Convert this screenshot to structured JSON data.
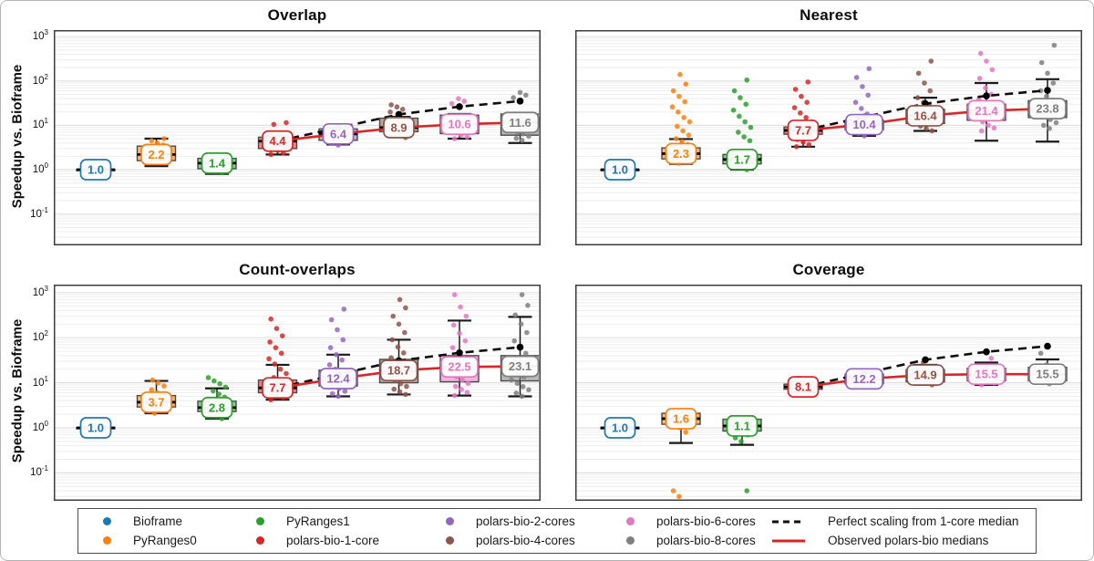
{
  "figure": {
    "ylabel": "Speedup vs. Bioframe",
    "tick_exponents": [
      3,
      2,
      1,
      0,
      -1
    ],
    "y_scale": "log"
  },
  "palette": {
    "blue": "#1f77b4",
    "orange": "#ff7f0e",
    "green": "#2ca02c",
    "red": "#d62728",
    "purple": "#9467bd",
    "brown": "#8c564b",
    "pink": "#e377c2",
    "gray": "#7f7f7f",
    "perfect_line": "#0d0d0d",
    "observed_line": "#d62728"
  },
  "legend": {
    "items": [
      {
        "label": "Bioframe",
        "marker": "dot",
        "color": "#1f77b4"
      },
      {
        "label": "PyRanges0",
        "marker": "dot",
        "color": "#ff7f0e"
      },
      {
        "label": "PyRanges1",
        "marker": "dot",
        "color": "#2ca02c"
      },
      {
        "label": "polars-bio-1-core",
        "marker": "dot",
        "color": "#d62728"
      },
      {
        "label": "polars-bio-2-cores",
        "marker": "dot",
        "color": "#9467bd"
      },
      {
        "label": "polars-bio-4-cores",
        "marker": "dot",
        "color": "#8c564b"
      },
      {
        "label": "polars-bio-6-cores",
        "marker": "dot",
        "color": "#e377c2"
      },
      {
        "label": "polars-bio-8-cores",
        "marker": "dot",
        "color": "#7f7f7f"
      },
      {
        "label": "Perfect scaling from 1-core median",
        "marker": "dashed",
        "color": "#0d0d0d"
      },
      {
        "label": "Observed polars-bio medians",
        "marker": "solid",
        "color": "#d62728"
      }
    ]
  },
  "chart_data": [
    {
      "type": "box",
      "title": "Overlap",
      "series": [
        {
          "name": "Bioframe",
          "color": "#1f77b4",
          "label": "1.0",
          "median": 1.0,
          "q1": 0.98,
          "q3": 1.02,
          "lo": 0.94,
          "hi": 1.06,
          "points": []
        },
        {
          "name": "PyRanges0",
          "color": "#ff7f0e",
          "label": "2.2",
          "median": 2.2,
          "q1": 1.6,
          "q3": 3.4,
          "lo": 1.2,
          "hi": 5.0,
          "points": [
            1.5,
            1.7,
            1.9,
            2.1,
            2.3,
            2.6,
            2.9,
            3.2,
            3.6,
            4.0,
            4.5,
            5.0
          ]
        },
        {
          "name": "PyRanges1",
          "color": "#2ca02c",
          "label": "1.4",
          "median": 1.4,
          "q1": 1.05,
          "q3": 1.8,
          "lo": 0.8,
          "hi": 2.0,
          "points": [
            0.85,
            0.9,
            0.95,
            1.0,
            1.05,
            1.1,
            1.2,
            1.3,
            1.45,
            1.6,
            1.8
          ]
        },
        {
          "name": "polars-bio-1-core",
          "color": "#d62728",
          "label": "4.4",
          "median": 4.4,
          "q1": 3.0,
          "q3": 5.4,
          "lo": 2.2,
          "hi": 5.8,
          "points": [
            2.2,
            2.4,
            2.7,
            3.0,
            3.3,
            3.7,
            4.1,
            4.6,
            5.1,
            10.5,
            11.5
          ]
        },
        {
          "name": "polars-bio-2-cores",
          "color": "#9467bd",
          "label": "6.4",
          "median": 6.4,
          "q1": 4.6,
          "q3": 8.3,
          "lo": 3.7,
          "hi": 8.8,
          "points": [
            3.6,
            3.9,
            4.2,
            4.6,
            5.0,
            5.5,
            6.0,
            6.6,
            7.3,
            8.0
          ]
        },
        {
          "name": "polars-bio-4-cores",
          "color": "#8c564b",
          "label": "8.9",
          "median": 8.9,
          "q1": 7.2,
          "q3": 14.5,
          "lo": 5.8,
          "hi": 15.5,
          "points": [
            5.3,
            5.8,
            6.3,
            7.0,
            7.7,
            8.5,
            9.4,
            10.5,
            12,
            20,
            23,
            26,
            29
          ]
        },
        {
          "name": "polars-bio-6-cores",
          "color": "#e377c2",
          "label": "10.6",
          "median": 10.6,
          "q1": 6.5,
          "q3": 17,
          "lo": 5.0,
          "hi": 18,
          "points": [
            5.0,
            5.5,
            6.1,
            6.8,
            7.5,
            8.4,
            9.4,
            10.5,
            12,
            14,
            31,
            35,
            40
          ]
        },
        {
          "name": "polars-bio-8-cores",
          "color": "#7f7f7f",
          "label": "11.6",
          "median": 11.6,
          "q1": 6.0,
          "q3": 18,
          "lo": 4.0,
          "hi": 19,
          "points": [
            4.6,
            5.1,
            5.7,
            6.4,
            7.2,
            8.1,
            9.1,
            10.3,
            12,
            14,
            16,
            42,
            48,
            55
          ]
        }
      ],
      "perfect_scaling": {
        "x_indices": [
          3,
          4,
          5,
          6,
          7
        ],
        "values": [
          4.4,
          8.8,
          17.6,
          26.4,
          35.2
        ]
      },
      "observed_medians": {
        "x_indices": [
          3,
          4,
          5,
          6,
          7
        ],
        "values": [
          4.4,
          6.4,
          8.9,
          10.6,
          11.6
        ]
      }
    },
    {
      "type": "box",
      "title": "Nearest",
      "series": [
        {
          "name": "Bioframe",
          "color": "#1f77b4",
          "label": "1.0",
          "median": 1.0,
          "q1": 0.98,
          "q3": 1.02,
          "lo": 0.94,
          "hi": 1.06,
          "points": []
        },
        {
          "name": "PyRanges0",
          "color": "#ff7f0e",
          "label": "2.3",
          "median": 2.3,
          "q1": 1.75,
          "q3": 3.1,
          "lo": 1.35,
          "hi": 4.9,
          "points": [
            1.4,
            1.6,
            1.8,
            2.0,
            2.2,
            2.5,
            2.8,
            3.2,
            3.7,
            4.3,
            5.0,
            6.0,
            7.5,
            9.5,
            12,
            15,
            20,
            26,
            34,
            45,
            60,
            85,
            140
          ]
        },
        {
          "name": "PyRanges1",
          "color": "#2ca02c",
          "label": "1.7",
          "median": 1.7,
          "q1": 1.35,
          "q3": 2.2,
          "lo": 1.0,
          "hi": 2.6,
          "points": [
            1.0,
            1.1,
            1.2,
            1.3,
            1.45,
            1.6,
            1.75,
            1.95,
            2.2,
            4.5,
            5.5,
            7,
            9,
            12,
            16,
            22,
            30,
            42,
            60,
            105
          ]
        },
        {
          "name": "polars-bio-1-core",
          "color": "#d62728",
          "label": "7.7",
          "median": 7.7,
          "q1": 6.3,
          "q3": 9.2,
          "lo": 3.3,
          "hi": 10,
          "points": [
            3.3,
            3.7,
            4.2,
            4.8,
            5.5,
            6.2,
            7.0,
            7.9,
            8.9,
            10,
            12,
            15,
            19,
            25,
            33,
            45,
            65,
            95
          ]
        },
        {
          "name": "polars-bio-2-cores",
          "color": "#9467bd",
          "label": "10.4",
          "median": 10.4,
          "q1": 8.0,
          "q3": 13,
          "lo": 5.8,
          "hi": 15.5,
          "points": [
            5.8,
            6.5,
            7.3,
            8.2,
            9.2,
            10.3,
            11.6,
            13,
            15,
            18,
            24,
            33,
            48,
            75,
            120,
            190
          ]
        },
        {
          "name": "polars-bio-4-cores",
          "color": "#8c564b",
          "label": "16.4",
          "median": 16.4,
          "q1": 11,
          "q3": 23,
          "lo": 7.5,
          "hi": 42,
          "points": [
            7.5,
            8.5,
            9.6,
            11,
            12.5,
            14,
            16,
            18,
            21,
            24,
            28,
            33,
            42,
            60,
            90,
            150,
            280
          ]
        },
        {
          "name": "polars-bio-6-cores",
          "color": "#e377c2",
          "label": "21.4",
          "median": 21.4,
          "q1": 13,
          "q3": 30,
          "lo": 4.5,
          "hi": 90,
          "points": [
            7.5,
            8.7,
            10,
            12,
            14,
            16,
            19,
            22,
            26,
            31,
            38,
            50,
            70,
            115,
            180,
            280,
            420
          ]
        },
        {
          "name": "polars-bio-8-cores",
          "color": "#7f7f7f",
          "label": "23.8",
          "median": 23.8,
          "q1": 15,
          "q3": 36,
          "lo": 4.3,
          "hi": 110,
          "points": [
            8.5,
            10,
            11.5,
            13.5,
            16,
            19,
            22,
            26,
            31,
            37,
            45,
            60,
            90,
            150,
            260,
            640
          ]
        }
      ],
      "perfect_scaling": {
        "x_indices": [
          3,
          4,
          5,
          6,
          7
        ],
        "values": [
          7.7,
          15.4,
          30.8,
          46.2,
          61.6
        ]
      },
      "observed_medians": {
        "x_indices": [
          3,
          4,
          5,
          6,
          7
        ],
        "values": [
          7.7,
          10.4,
          16.4,
          21.4,
          23.8
        ]
      }
    },
    {
      "type": "box",
      "title": "Count-overlaps",
      "series": [
        {
          "name": "Bioframe",
          "color": "#1f77b4",
          "label": "1.0",
          "median": 1.0,
          "q1": 0.98,
          "q3": 1.02,
          "lo": 0.94,
          "hi": 1.06,
          "points": []
        },
        {
          "name": "PyRanges0",
          "color": "#ff7f0e",
          "label": "3.7",
          "median": 3.7,
          "q1": 2.9,
          "q3": 5.2,
          "lo": 2.1,
          "hi": 11,
          "points": [
            2.1,
            2.4,
            2.7,
            3.0,
            3.4,
            3.8,
            4.2,
            4.7,
            5.3,
            6.0,
            7.0,
            8.5,
            10,
            11.5
          ]
        },
        {
          "name": "PyRanges1",
          "color": "#2ca02c",
          "label": "2.8",
          "median": 2.8,
          "q1": 2.3,
          "q3": 3.9,
          "lo": 1.6,
          "hi": 7.5,
          "points": [
            1.6,
            1.8,
            2.0,
            2.3,
            2.6,
            2.9,
            3.3,
            3.7,
            4.2,
            4.8,
            5.6,
            6.6,
            8,
            9.5,
            11,
            13
          ]
        },
        {
          "name": "polars-bio-1-core",
          "color": "#d62728",
          "label": "7.7",
          "median": 7.7,
          "q1": 6.0,
          "q3": 11.5,
          "lo": 4.2,
          "hi": 25,
          "points": [
            4.2,
            4.7,
            5.3,
            6.0,
            6.7,
            7.5,
            8.4,
            9.5,
            11,
            13,
            16,
            20,
            26,
            34,
            45,
            60,
            80,
            110,
            160,
            260
          ]
        },
        {
          "name": "polars-bio-2-cores",
          "color": "#9467bd",
          "label": "12.4",
          "median": 12.4,
          "q1": 8.5,
          "q3": 19,
          "lo": 5.0,
          "hi": 42,
          "points": [
            5.0,
            5.7,
            6.5,
            7.4,
            8.4,
            9.5,
            11,
            12.5,
            14,
            17,
            20,
            25,
            32,
            42,
            60,
            90,
            150,
            250,
            430
          ]
        },
        {
          "name": "polars-bio-4-cores",
          "color": "#8c564b",
          "label": "18.7",
          "median": 18.7,
          "q1": 10,
          "q3": 33,
          "lo": 5.5,
          "hi": 90,
          "points": [
            5.5,
            6.3,
            7.2,
            8.3,
            9.5,
            11,
            12.5,
            14.5,
            17,
            20,
            24,
            29,
            36,
            46,
            62,
            90,
            130,
            200,
            300,
            460,
            700
          ]
        },
        {
          "name": "polars-bio-6-cores",
          "color": "#e377c2",
          "label": "22.5",
          "median": 22.5,
          "q1": 10.5,
          "q3": 40,
          "lo": 5.2,
          "hi": 240,
          "points": [
            5.2,
            6.1,
            7.1,
            8.3,
            9.7,
            11.5,
            13.5,
            16,
            19,
            23,
            28,
            35,
            45,
            60,
            85,
            125,
            190,
            300,
            480,
            900
          ]
        },
        {
          "name": "polars-bio-8-cores",
          "color": "#7f7f7f",
          "label": "23.1",
          "median": 23.1,
          "q1": 11,
          "q3": 40,
          "lo": 5.0,
          "hi": 290,
          "points": [
            5.0,
            5.9,
            7.0,
            8.2,
            9.7,
            11.5,
            13.5,
            16,
            19,
            23,
            28,
            35,
            45,
            60,
            85,
            130,
            200,
            320,
            520,
            900
          ]
        }
      ],
      "perfect_scaling": {
        "x_indices": [
          3,
          4,
          5,
          6,
          7
        ],
        "values": [
          7.7,
          15.4,
          30.8,
          46.2,
          61.6
        ]
      },
      "observed_medians": {
        "x_indices": [
          3,
          4,
          5,
          6,
          7
        ],
        "values": [
          7.7,
          12.4,
          18.7,
          22.5,
          23.1
        ]
      }
    },
    {
      "type": "box",
      "title": "Coverage",
      "series": [
        {
          "name": "Bioframe",
          "color": "#1f77b4",
          "label": "1.0",
          "median": 1.0,
          "q1": 0.98,
          "q3": 1.02,
          "lo": 0.94,
          "hi": 1.06,
          "points": []
        },
        {
          "name": "PyRanges0",
          "color": "#ff7f0e",
          "label": "1.6",
          "median": 1.6,
          "q1": 1.2,
          "q3": 2.1,
          "lo": 0.46,
          "hi": 2.5,
          "points": [
            0.03,
            0.04,
            0.8,
            1.0,
            1.1,
            1.2,
            1.35,
            1.5,
            1.65,
            1.8,
            2.0,
            2.2,
            2.4
          ]
        },
        {
          "name": "PyRanges1",
          "color": "#2ca02c",
          "label": "1.1",
          "median": 1.1,
          "q1": 0.85,
          "q3": 1.55,
          "lo": 0.42,
          "hi": 1.8,
          "points": [
            0.04,
            0.5,
            0.6,
            0.7,
            0.8,
            0.9,
            1.0,
            1.1,
            1.2,
            1.35,
            1.5,
            1.7
          ]
        },
        {
          "name": "polars-bio-1-core",
          "color": "#d62728",
          "label": "8.1",
          "median": 8.1,
          "q1": 7.2,
          "q3": 9.3,
          "lo": 6.2,
          "hi": 10.5,
          "points": [
            6.2,
            6.6,
            7.0,
            7.5,
            8.0,
            8.5,
            9.0,
            9.6,
            10.2,
            12.5
          ]
        },
        {
          "name": "polars-bio-2-cores",
          "color": "#9467bd",
          "label": "12.2",
          "median": 12.2,
          "q1": 9.5,
          "q3": 15.5,
          "lo": 8.0,
          "hi": 18.5,
          "points": [
            8.0,
            8.7,
            9.4,
            10.2,
            11,
            12,
            13,
            14,
            15.2,
            16.5,
            18
          ]
        },
        {
          "name": "polars-bio-4-cores",
          "color": "#8c564b",
          "label": "14.9",
          "median": 14.9,
          "q1": 10.5,
          "q3": 19.5,
          "lo": 9.0,
          "hi": 25,
          "points": [
            9.0,
            9.8,
            10.7,
            11.6,
            12.7,
            13.8,
            15,
            16.4,
            17.8,
            19.4,
            21,
            28
          ]
        },
        {
          "name": "polars-bio-6-cores",
          "color": "#e377c2",
          "label": "15.5",
          "median": 15.5,
          "q1": 11,
          "q3": 21,
          "lo": 9.0,
          "hi": 28,
          "points": [
            9.0,
            9.9,
            10.8,
            11.9,
            13,
            14.3,
            15.7,
            17.2,
            18.8,
            20.6,
            23,
            35
          ]
        },
        {
          "name": "polars-bio-8-cores",
          "color": "#7f7f7f",
          "label": "15.5",
          "median": 15.5,
          "q1": 11,
          "q3": 22,
          "lo": 9.5,
          "hi": 33,
          "points": [
            9.5,
            10.4,
            11.5,
            12.6,
            13.8,
            15.2,
            16.7,
            18.3,
            20,
            22,
            25,
            45
          ]
        }
      ],
      "perfect_scaling": {
        "x_indices": [
          3,
          4,
          5,
          6,
          7
        ],
        "values": [
          8.1,
          16.2,
          32.4,
          48.6,
          64.8
        ]
      },
      "observed_medians": {
        "x_indices": [
          3,
          4,
          5,
          6,
          7
        ],
        "values": [
          8.1,
          12.2,
          14.9,
          15.5,
          15.5
        ]
      }
    }
  ]
}
